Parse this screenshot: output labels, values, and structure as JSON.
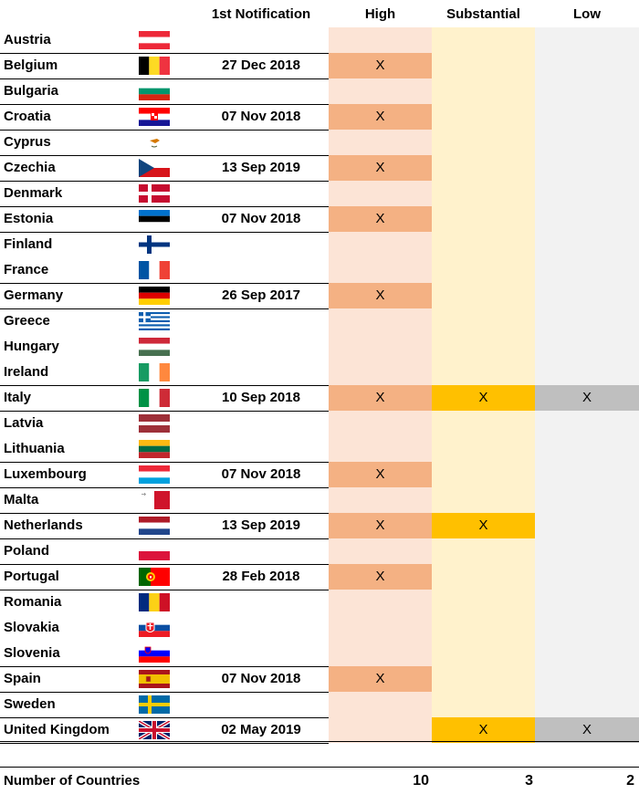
{
  "headers": {
    "notification": "1st Notification",
    "high": "High",
    "substantial": "Substantial",
    "low": "Low"
  },
  "mark": "X",
  "rows": [
    {
      "country": "Austria",
      "flag": "austria-flag-icon",
      "date": "",
      "high": false,
      "substantial": false,
      "low": false
    },
    {
      "country": "Belgium",
      "flag": "belgium-flag-icon",
      "date": "27 Dec 2018",
      "high": true,
      "substantial": false,
      "low": false
    },
    {
      "country": "Bulgaria",
      "flag": "bulgaria-flag-icon",
      "date": "",
      "high": false,
      "substantial": false,
      "low": false
    },
    {
      "country": "Croatia",
      "flag": "croatia-flag-icon",
      "date": "07 Nov 2018",
      "high": true,
      "substantial": false,
      "low": false
    },
    {
      "country": "Cyprus",
      "flag": "cyprus-flag-icon",
      "date": "",
      "high": false,
      "substantial": false,
      "low": false
    },
    {
      "country": "Czechia",
      "flag": "czechia-flag-icon",
      "date": "13 Sep 2019",
      "high": true,
      "substantial": false,
      "low": false
    },
    {
      "country": "Denmark",
      "flag": "denmark-flag-icon",
      "date": "",
      "high": false,
      "substantial": false,
      "low": false
    },
    {
      "country": "Estonia",
      "flag": "estonia-flag-icon",
      "date": "07 Nov 2018",
      "high": true,
      "substantial": false,
      "low": false
    },
    {
      "country": "Finland",
      "flag": "finland-flag-icon",
      "date": "",
      "high": false,
      "substantial": false,
      "low": false
    },
    {
      "country": "France",
      "flag": "france-flag-icon",
      "date": "",
      "high": false,
      "substantial": false,
      "low": false
    },
    {
      "country": "Germany",
      "flag": "germany-flag-icon",
      "date": "26 Sep 2017",
      "high": true,
      "substantial": false,
      "low": false
    },
    {
      "country": "Greece",
      "flag": "greece-flag-icon",
      "date": "",
      "high": false,
      "substantial": false,
      "low": false
    },
    {
      "country": "Hungary",
      "flag": "hungary-flag-icon",
      "date": "",
      "high": false,
      "substantial": false,
      "low": false
    },
    {
      "country": "Ireland",
      "flag": "ireland-flag-icon",
      "date": "",
      "high": false,
      "substantial": false,
      "low": false
    },
    {
      "country": "Italy",
      "flag": "italy-flag-icon",
      "date": "10 Sep 2018",
      "high": true,
      "substantial": true,
      "low": true
    },
    {
      "country": "Latvia",
      "flag": "latvia-flag-icon",
      "date": "",
      "high": false,
      "substantial": false,
      "low": false
    },
    {
      "country": "Lithuania",
      "flag": "lithuania-flag-icon",
      "date": "",
      "high": false,
      "substantial": false,
      "low": false
    },
    {
      "country": "Luxembourg",
      "flag": "luxembourg-flag-icon",
      "date": "07 Nov 2018",
      "high": true,
      "substantial": false,
      "low": false
    },
    {
      "country": "Malta",
      "flag": "malta-flag-icon",
      "date": "",
      "high": false,
      "substantial": false,
      "low": false
    },
    {
      "country": "Netherlands",
      "flag": "netherlands-flag-icon",
      "date": "13 Sep 2019",
      "high": true,
      "substantial": true,
      "low": false
    },
    {
      "country": "Poland",
      "flag": "poland-flag-icon",
      "date": "",
      "high": false,
      "substantial": false,
      "low": false
    },
    {
      "country": "Portugal",
      "flag": "portugal-flag-icon",
      "date": "28 Feb 2018",
      "high": true,
      "substantial": false,
      "low": false
    },
    {
      "country": "Romania",
      "flag": "romania-flag-icon",
      "date": "",
      "high": false,
      "substantial": false,
      "low": false
    },
    {
      "country": "Slovakia",
      "flag": "slovakia-flag-icon",
      "date": "",
      "high": false,
      "substantial": false,
      "low": false
    },
    {
      "country": "Slovenia",
      "flag": "slovenia-flag-icon",
      "date": "",
      "high": false,
      "substantial": false,
      "low": false
    },
    {
      "country": "Spain",
      "flag": "spain-flag-icon",
      "date": "07 Nov 2018",
      "high": true,
      "substantial": false,
      "low": false
    },
    {
      "country": "Sweden",
      "flag": "sweden-flag-icon",
      "date": "",
      "high": false,
      "substantial": false,
      "low": false
    },
    {
      "country": "United Kingdom",
      "flag": "united-kingdom-flag-icon",
      "date": "02 May 2019",
      "high": false,
      "substantial": true,
      "low": true
    }
  ],
  "footer": {
    "label": "Number of Countries",
    "high": "10",
    "substantial": "3",
    "low": "2"
  },
  "colors": {
    "high_empty": "#fce4d6",
    "high_filled": "#f4b183",
    "substantial_empty": "#fff2cc",
    "substantial_filled": "#ffc000",
    "low_empty": "#f2f2f2",
    "low_filled": "#bfbfbf"
  }
}
